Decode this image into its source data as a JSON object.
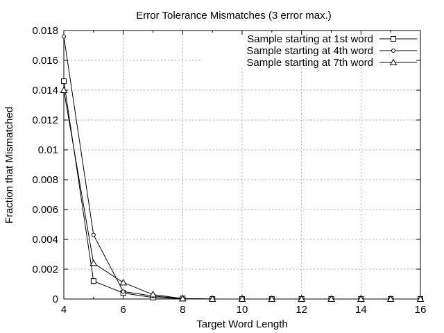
{
  "chart_data": {
    "type": "line",
    "title": "Error Tolerance Mismatches (3 error max.)",
    "xlabel": "Target Word Length",
    "ylabel": "Fraction that Mismatched",
    "xlim": [
      4,
      16
    ],
    "ylim": [
      0,
      0.018
    ],
    "x_ticks": [
      4,
      6,
      8,
      10,
      12,
      14,
      16
    ],
    "x_tick_labels": [
      "4",
      "6",
      "8",
      "10",
      "12",
      "14",
      "16"
    ],
    "y_ticks": [
      0,
      0.002,
      0.004,
      0.006,
      0.008,
      0.01,
      0.012,
      0.014,
      0.016,
      0.018
    ],
    "y_tick_labels": [
      "0",
      "0.002",
      "0.004",
      "0.006",
      "0.008",
      "0.01",
      "0.012",
      "0.014",
      "0.016",
      "0.018"
    ],
    "grid": true,
    "legend_position": "top-right",
    "x": [
      4,
      5,
      6,
      7,
      8,
      9,
      10,
      11,
      12,
      13,
      14,
      15,
      16
    ],
    "series": [
      {
        "name": "Sample starting at 1st word",
        "marker": "square",
        "values": [
          0.0146,
          0.0012,
          0.0004,
          0.0001,
          3e-05,
          0,
          0,
          0,
          0,
          0,
          0,
          0,
          0
        ]
      },
      {
        "name": "Sample starting at 4th word",
        "marker": "circle",
        "values": [
          0.0176,
          0.0043,
          0.0005,
          0.0002,
          3e-05,
          0,
          0,
          0,
          0,
          0,
          0,
          0,
          0
        ]
      },
      {
        "name": "Sample starting at 7th word",
        "marker": "triangle",
        "values": [
          0.014,
          0.0024,
          0.0011,
          0.0003,
          3e-05,
          0,
          0,
          0,
          0,
          0,
          0,
          0,
          0
        ]
      }
    ]
  }
}
